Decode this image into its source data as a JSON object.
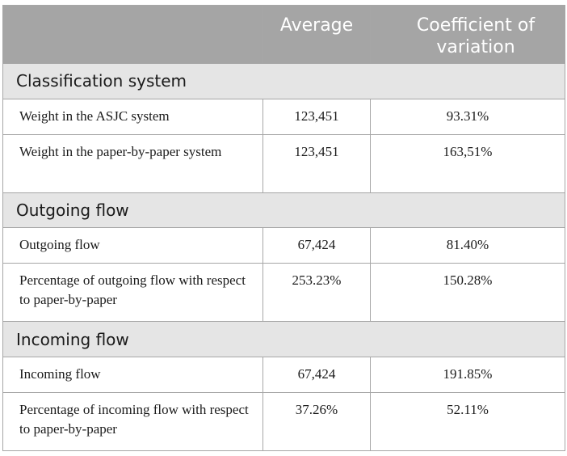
{
  "header": {
    "col1": "",
    "col2": "Average",
    "col3": "Coefficient of variation"
  },
  "sections": [
    {
      "title": "Classification system",
      "rows": [
        {
          "label": "Weight in the ASJC system",
          "average": "123,451",
          "cv": "93.31%"
        },
        {
          "label": "Weight in the paper-by-paper system",
          "average": "123,451",
          "cv": "163,51%"
        }
      ]
    },
    {
      "title": "Outgoing flow",
      "rows": [
        {
          "label": "Outgoing flow",
          "average": "67,424",
          "cv": "81.40%"
        },
        {
          "label": "Percentage of outgoing flow with respect to paper-by-paper",
          "average": "253.23%",
          "cv": "150.28%"
        }
      ]
    },
    {
      "title": "Incoming flow",
      "rows": [
        {
          "label": "Incoming flow",
          "average": "67,424",
          "cv": "191.85%"
        },
        {
          "label": "Percentage of incoming flow with respect to paper-by-paper",
          "average": "37.26%",
          "cv": "52.11%"
        }
      ]
    }
  ]
}
